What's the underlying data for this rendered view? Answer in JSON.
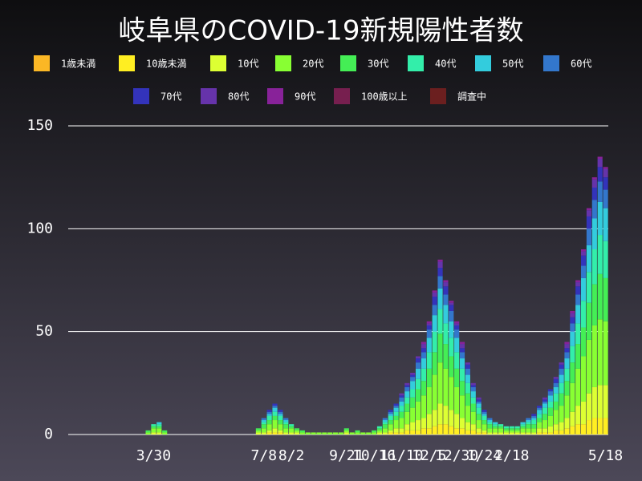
{
  "chart_data": {
    "type": "stacked-bar",
    "title": "岐阜県のCOVID-19新規陽性者数",
    "categories": [
      null,
      null,
      null,
      null,
      null,
      null,
      null,
      null,
      null,
      null,
      null,
      null,
      null,
      null,
      null,
      "3/30",
      null,
      null,
      null,
      null,
      null,
      null,
      null,
      null,
      null,
      null,
      null,
      null,
      null,
      null,
      null,
      null,
      null,
      null,
      null,
      "7/8",
      null,
      null,
      null,
      null,
      "8/2",
      null,
      null,
      null,
      null,
      null,
      null,
      null,
      null,
      null,
      "9/21",
      null,
      null,
      null,
      null,
      "10/16",
      null,
      null,
      null,
      null,
      "11/10",
      null,
      null,
      null,
      null,
      "12/5",
      null,
      null,
      null,
      null,
      "12/30",
      null,
      null,
      null,
      null,
      "1/24",
      null,
      null,
      null,
      null,
      "2/18",
      null,
      null,
      null,
      null,
      null,
      null,
      null,
      null,
      null,
      null,
      null,
      null,
      null,
      null,
      null,
      null,
      "5/18"
    ],
    "ylim": [
      0,
      150
    ],
    "yticks": [
      0,
      50,
      100,
      150
    ],
    "grid": true,
    "series": [
      {
        "name": "1歳未満",
        "color": "#fbb725",
        "values": [
          0,
          0,
          0,
          0,
          0,
          0,
          0,
          0,
          0,
          0,
          0,
          0,
          0,
          0,
          0,
          0,
          0,
          0,
          0,
          0,
          0,
          0,
          0,
          0,
          0,
          0,
          0,
          0,
          0,
          0,
          0,
          0,
          0,
          0,
          0,
          0,
          0,
          0,
          0,
          0,
          0,
          0,
          0,
          0,
          0,
          0,
          0,
          0,
          0,
          0,
          0,
          0,
          0,
          0,
          0,
          0,
          0,
          0,
          0,
          0,
          0,
          0,
          0,
          0,
          0,
          0,
          0,
          0,
          0,
          0,
          0,
          0,
          0,
          0,
          0,
          0,
          0,
          0,
          0,
          0,
          0,
          0,
          0,
          0,
          0,
          0,
          0,
          0,
          0,
          0,
          0,
          0,
          0,
          0,
          0,
          0,
          0,
          0
        ]
      },
      {
        "name": "10歳未満",
        "color": "#ffee22",
        "values": [
          0,
          0,
          0,
          0,
          0,
          0,
          0,
          0,
          0,
          0,
          0,
          0,
          0,
          0,
          0,
          0,
          0,
          0,
          0,
          0,
          0,
          0,
          0,
          0,
          0,
          0,
          0,
          0,
          0,
          0,
          0,
          0,
          0,
          0,
          0,
          0,
          1,
          1,
          1,
          0,
          0,
          0,
          0,
          0,
          0,
          0,
          0,
          0,
          0,
          0,
          0,
          0,
          0,
          0,
          0,
          0,
          0,
          0,
          1,
          1,
          1,
          2,
          2,
          2,
          3,
          3,
          4,
          5,
          5,
          4,
          3,
          3,
          2,
          2,
          1,
          1,
          0,
          0,
          0,
          0,
          0,
          0,
          0,
          0,
          0,
          1,
          1,
          1,
          2,
          2,
          3,
          4,
          5,
          5,
          7,
          8,
          8,
          8
        ]
      },
      {
        "name": "10代",
        "color": "#ddff33",
        "values": [
          0,
          0,
          0,
          0,
          0,
          0,
          0,
          0,
          0,
          0,
          0,
          0,
          0,
          0,
          0,
          1,
          1,
          0,
          0,
          0,
          0,
          0,
          0,
          0,
          0,
          0,
          0,
          0,
          0,
          0,
          0,
          0,
          0,
          0,
          1,
          1,
          1,
          2,
          1,
          1,
          1,
          1,
          0,
          0,
          0,
          0,
          0,
          0,
          0,
          0,
          1,
          0,
          0,
          0,
          0,
          0,
          1,
          1,
          1,
          2,
          2,
          3,
          4,
          5,
          5,
          7,
          8,
          10,
          9,
          8,
          7,
          5,
          4,
          3,
          2,
          1,
          1,
          1,
          1,
          1,
          1,
          1,
          1,
          1,
          1,
          2,
          2,
          3,
          3,
          4,
          5,
          7,
          9,
          11,
          13,
          15,
          16,
          16
        ]
      },
      {
        "name": "20代",
        "color": "#88ff33",
        "values": [
          0,
          0,
          0,
          0,
          0,
          0,
          0,
          0,
          0,
          0,
          0,
          0,
          0,
          0,
          1,
          2,
          2,
          1,
          0,
          0,
          0,
          0,
          0,
          0,
          0,
          0,
          0,
          0,
          0,
          0,
          0,
          0,
          0,
          0,
          1,
          2,
          3,
          4,
          3,
          2,
          2,
          1,
          1,
          1,
          1,
          1,
          1,
          1,
          1,
          1,
          1,
          1,
          1,
          1,
          1,
          1,
          1,
          2,
          3,
          4,
          5,
          6,
          7,
          9,
          11,
          13,
          17,
          20,
          18,
          16,
          13,
          11,
          8,
          6,
          4,
          3,
          2,
          2,
          2,
          1,
          1,
          1,
          2,
          2,
          2,
          3,
          4,
          5,
          7,
          8,
          11,
          14,
          18,
          22,
          26,
          30,
          32,
          31
        ]
      },
      {
        "name": "30代",
        "color": "#44ee55",
        "values": [
          0,
          0,
          0,
          0,
          0,
          0,
          0,
          0,
          0,
          0,
          0,
          0,
          0,
          0,
          1,
          1,
          1,
          1,
          0,
          0,
          0,
          0,
          0,
          0,
          0,
          0,
          0,
          0,
          0,
          0,
          0,
          0,
          0,
          0,
          1,
          2,
          2,
          2,
          2,
          2,
          1,
          1,
          1,
          0,
          0,
          0,
          0,
          0,
          0,
          0,
          1,
          0,
          1,
          0,
          0,
          1,
          1,
          2,
          2,
          2,
          3,
          4,
          5,
          6,
          7,
          9,
          11,
          14,
          12,
          10,
          9,
          7,
          6,
          4,
          3,
          2,
          2,
          1,
          1,
          1,
          1,
          1,
          1,
          2,
          2,
          2,
          3,
          4,
          4,
          6,
          7,
          10,
          12,
          14,
          18,
          20,
          22,
          21
        ]
      },
      {
        "name": "40代",
        "color": "#33eeaa",
        "values": [
          0,
          0,
          0,
          0,
          0,
          0,
          0,
          0,
          0,
          0,
          0,
          0,
          0,
          0,
          0,
          1,
          1,
          0,
          0,
          0,
          0,
          0,
          0,
          0,
          0,
          0,
          0,
          0,
          0,
          0,
          0,
          0,
          0,
          0,
          0,
          1,
          2,
          2,
          2,
          1,
          1,
          0,
          0,
          0,
          0,
          0,
          0,
          0,
          0,
          0,
          0,
          0,
          0,
          0,
          0,
          0,
          1,
          1,
          2,
          2,
          3,
          3,
          4,
          5,
          6,
          8,
          10,
          12,
          10,
          9,
          8,
          6,
          5,
          3,
          3,
          2,
          1,
          1,
          1,
          1,
          1,
          1,
          1,
          1,
          2,
          2,
          3,
          3,
          4,
          5,
          6,
          8,
          10,
          13,
          15,
          17,
          19,
          18
        ]
      },
      {
        "name": "50代",
        "color": "#33ccdd",
        "values": [
          0,
          0,
          0,
          0,
          0,
          0,
          0,
          0,
          0,
          0,
          0,
          0,
          0,
          0,
          0,
          0,
          1,
          0,
          0,
          0,
          0,
          0,
          0,
          0,
          0,
          0,
          0,
          0,
          0,
          0,
          0,
          0,
          0,
          0,
          0,
          1,
          1,
          2,
          1,
          1,
          0,
          0,
          0,
          0,
          0,
          0,
          0,
          0,
          0,
          0,
          0,
          0,
          0,
          0,
          0,
          0,
          0,
          1,
          1,
          2,
          2,
          3,
          4,
          5,
          5,
          7,
          8,
          10,
          9,
          8,
          7,
          5,
          4,
          3,
          2,
          1,
          1,
          1,
          0,
          0,
          0,
          0,
          1,
          1,
          1,
          2,
          2,
          3,
          3,
          4,
          5,
          7,
          9,
          11,
          13,
          15,
          16,
          16
        ]
      },
      {
        "name": "60代",
        "color": "#3377cc",
        "values": [
          0,
          0,
          0,
          0,
          0,
          0,
          0,
          0,
          0,
          0,
          0,
          0,
          0,
          0,
          0,
          0,
          0,
          0,
          0,
          0,
          0,
          0,
          0,
          0,
          0,
          0,
          0,
          0,
          0,
          0,
          0,
          0,
          0,
          0,
          0,
          1,
          1,
          1,
          1,
          1,
          0,
          0,
          0,
          0,
          0,
          0,
          0,
          0,
          0,
          0,
          0,
          0,
          0,
          0,
          0,
          0,
          0,
          1,
          1,
          1,
          2,
          2,
          2,
          3,
          3,
          4,
          5,
          6,
          5,
          5,
          4,
          3,
          3,
          2,
          1,
          1,
          1,
          0,
          0,
          0,
          0,
          0,
          0,
          1,
          1,
          1,
          1,
          2,
          2,
          3,
          3,
          4,
          5,
          6,
          8,
          9,
          10,
          9
        ]
      },
      {
        "name": "70代",
        "color": "#3333bb",
        "values": [
          0,
          0,
          0,
          0,
          0,
          0,
          0,
          0,
          0,
          0,
          0,
          0,
          0,
          0,
          0,
          0,
          0,
          0,
          0,
          0,
          0,
          0,
          0,
          0,
          0,
          0,
          0,
          0,
          0,
          0,
          0,
          0,
          0,
          0,
          0,
          0,
          1,
          1,
          1,
          0,
          0,
          0,
          0,
          0,
          0,
          0,
          0,
          0,
          0,
          0,
          0,
          0,
          0,
          0,
          0,
          0,
          0,
          0,
          1,
          1,
          1,
          1,
          1,
          2,
          2,
          2,
          4,
          4,
          4,
          3,
          2,
          2,
          2,
          1,
          1,
          1,
          0,
          0,
          0,
          0,
          0,
          0,
          0,
          0,
          1,
          1,
          1,
          1,
          2,
          2,
          2,
          3,
          4,
          5,
          6,
          6,
          7,
          6
        ]
      },
      {
        "name": "80代",
        "color": "#6633aa",
        "values": [
          0,
          0,
          0,
          0,
          0,
          0,
          0,
          0,
          0,
          0,
          0,
          0,
          0,
          0,
          0,
          0,
          0,
          0,
          0,
          0,
          0,
          0,
          0,
          0,
          0,
          0,
          0,
          0,
          0,
          0,
          0,
          0,
          0,
          0,
          0,
          0,
          0,
          0,
          0,
          0,
          0,
          0,
          0,
          0,
          0,
          0,
          0,
          0,
          0,
          0,
          0,
          0,
          0,
          0,
          0,
          0,
          0,
          0,
          0,
          0,
          1,
          1,
          1,
          1,
          2,
          1,
          2,
          3,
          2,
          1,
          1,
          2,
          1,
          1,
          1,
          0,
          0,
          0,
          0,
          0,
          0,
          0,
          0,
          0,
          0,
          0,
          1,
          0,
          1,
          1,
          2,
          2,
          2,
          2,
          3,
          4,
          4,
          4
        ]
      },
      {
        "name": "90代",
        "color": "#882299",
        "values": [
          0,
          0,
          0,
          0,
          0,
          0,
          0,
          0,
          0,
          0,
          0,
          0,
          0,
          0,
          0,
          0,
          0,
          0,
          0,
          0,
          0,
          0,
          0,
          0,
          0,
          0,
          0,
          0,
          0,
          0,
          0,
          0,
          0,
          0,
          0,
          0,
          0,
          0,
          0,
          0,
          0,
          0,
          0,
          0,
          0,
          0,
          0,
          0,
          0,
          0,
          0,
          0,
          0,
          0,
          0,
          0,
          0,
          0,
          0,
          0,
          0,
          0,
          0,
          0,
          1,
          1,
          1,
          1,
          1,
          1,
          1,
          1,
          0,
          0,
          0,
          0,
          0,
          0,
          0,
          0,
          0,
          0,
          0,
          0,
          0,
          0,
          0,
          0,
          0,
          0,
          1,
          1,
          1,
          1,
          1,
          1,
          1,
          1
        ]
      },
      {
        "name": "100歳以上",
        "color": "#771f4f",
        "values": [
          0,
          0,
          0,
          0,
          0,
          0,
          0,
          0,
          0,
          0,
          0,
          0,
          0,
          0,
          0,
          0,
          0,
          0,
          0,
          0,
          0,
          0,
          0,
          0,
          0,
          0,
          0,
          0,
          0,
          0,
          0,
          0,
          0,
          0,
          0,
          0,
          0,
          0,
          0,
          0,
          0,
          0,
          0,
          0,
          0,
          0,
          0,
          0,
          0,
          0,
          0,
          0,
          0,
          0,
          0,
          0,
          0,
          0,
          0,
          0,
          0,
          0,
          0,
          0,
          0,
          0,
          0,
          0,
          0,
          0,
          0,
          0,
          0,
          0,
          0,
          0,
          0,
          0,
          0,
          0,
          0,
          0,
          0,
          0,
          0,
          0,
          0,
          0,
          0,
          0,
          0,
          0,
          0,
          0,
          0,
          0,
          0,
          0
        ]
      },
      {
        "name": "調査中",
        "color": "#6b1f1f",
        "values": [
          0,
          0,
          0,
          0,
          0,
          0,
          0,
          0,
          0,
          0,
          0,
          0,
          0,
          0,
          0,
          0,
          0,
          0,
          0,
          0,
          0,
          0,
          0,
          0,
          0,
          0,
          0,
          0,
          0,
          0,
          0,
          0,
          0,
          0,
          0,
          0,
          0,
          0,
          0,
          0,
          0,
          0,
          0,
          0,
          0,
          0,
          0,
          0,
          0,
          0,
          0,
          0,
          0,
          0,
          0,
          0,
          0,
          0,
          0,
          0,
          0,
          0,
          0,
          0,
          0,
          0,
          0,
          0,
          0,
          0,
          0,
          0,
          0,
          0,
          0,
          0,
          0,
          0,
          0,
          0,
          0,
          0,
          0,
          0,
          0,
          0,
          0,
          0,
          0,
          0,
          0,
          0,
          0,
          0,
          0,
          0,
          0,
          0
        ]
      }
    ]
  }
}
